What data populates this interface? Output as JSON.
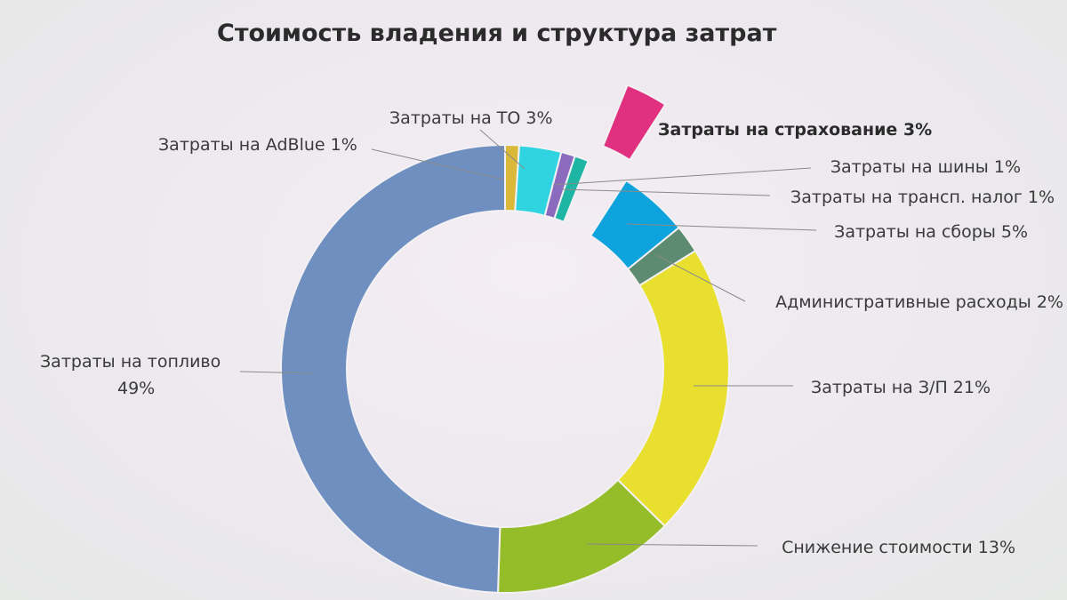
{
  "chart_data": {
    "type": "pie",
    "title": "Стоимость владения и структура затрат",
    "donut": true,
    "slices": [
      {
        "name": "Затраты на AdBlue",
        "percent_label": "1%",
        "value": 1,
        "color": "#d9b83a",
        "label_text": "Затраты на AdBlue 1%"
      },
      {
        "name": "Затраты на ТО",
        "percent_label": "3%",
        "value": 3,
        "color": "#2fd4e0",
        "label_text": "Затраты на ТО 3%"
      },
      {
        "name": "Затраты на шины",
        "percent_label": "1%",
        "value": 1,
        "color": "#8a6bbd",
        "label_text": "Затраты на шины 1%"
      },
      {
        "name": "Затраты на трансп. налог",
        "percent_label": "1%",
        "value": 1,
        "color": "#1fb5a4",
        "label_text": "Затраты на трансп. налог 1%"
      },
      {
        "name": "Затраты на страхование",
        "percent_label": "3%",
        "value": 3,
        "color": "#e0307f",
        "exploded": true,
        "label_text": "Затраты на страхование 3%"
      },
      {
        "name": "Затраты на сборы",
        "percent_label": "5%",
        "value": 5,
        "color": "#0ea3dc",
        "label_text": "Затраты на сборы 5%"
      },
      {
        "name": "Административные расходы",
        "percent_label": "2%",
        "value": 2,
        "color": "#5c8b72",
        "label_text": "Административные расходы 2%"
      },
      {
        "name": "Затраты на З/П",
        "percent_label": "21%",
        "value": 21,
        "color": "#e9df2e",
        "label_text": "Затраты на З/П 21%"
      },
      {
        "name": "Снижение стоимости",
        "percent_label": "13%",
        "value": 13,
        "color": "#95bd2a",
        "label_text": "Снижение стоимости 13%"
      },
      {
        "name": "Затраты на топливо",
        "percent_label": "49%",
        "value": 49,
        "color": "#6f8fc0",
        "label_lines": [
          "Затраты на топливо",
          "49%"
        ]
      }
    ]
  }
}
